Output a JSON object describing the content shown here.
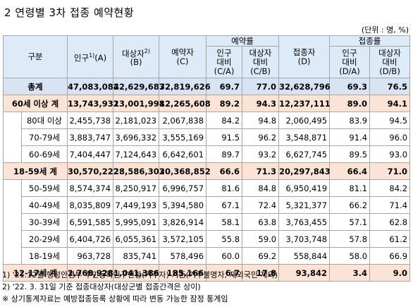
{
  "title": "2  연령별 3차 접종 예약현황",
  "unit": "(단위 : 명, %)",
  "headers": {
    "category": "구분",
    "population": "인구",
    "population_sup": "1)",
    "population_code": "(A)",
    "target": "대상자",
    "target_sup": "2)",
    "target_code": "(B)",
    "reserved": "예약자",
    "reserved_code": "(C)",
    "reservation_rate": "예약률",
    "rate_pop": "인구\n대비\n(C/A)",
    "rate_target": "대상자\n대비\n(C/B)",
    "vaccinated": "접종자",
    "vaccinated_code": "(D)",
    "vaccination_rate": "접종률",
    "vrate_pop": "인구\n대비\n(D/A)",
    "vrate_target": "대상자\n대비\n(D/B)"
  },
  "rows": [
    {
      "label": "총계",
      "population": "47,083,082",
      "target": "42,629,687",
      "reserved": "32,819,626",
      "rate_pop": "69.7",
      "rate_target": "77.0",
      "vaccinated": "32,628,796",
      "vrate_pop": "69.3",
      "vrate_target": "76.5"
    },
    {
      "label": "60세 이상 계",
      "population": "13,743,932",
      "target": "13,001,998",
      "reserved": "12,265,608",
      "rate_pop": "89.2",
      "rate_target": "94.3",
      "vaccinated": "12,237,111",
      "vrate_pop": "89.0",
      "vrate_target": "94.1"
    },
    {
      "label": "80대 이상",
      "population": "2,455,738",
      "target": "2,181,023",
      "reserved": "2,067,838",
      "rate_pop": "84.2",
      "rate_target": "94.8",
      "vaccinated": "2,060,495",
      "vrate_pop": "83.9",
      "vrate_target": "94.5"
    },
    {
      "label": "70-79세",
      "population": "3,883,747",
      "target": "3,696,332",
      "reserved": "3,555,169",
      "rate_pop": "91.5",
      "rate_target": "96.2",
      "vaccinated": "3,548,871",
      "vrate_pop": "91.4",
      "vrate_target": "96.0"
    },
    {
      "label": "60-69세",
      "population": "7,404,447",
      "target": "7,124,643",
      "reserved": "6,642,601",
      "rate_pop": "89.7",
      "rate_target": "93.2",
      "vaccinated": "6,627,745",
      "vrate_pop": "89.5",
      "vrate_target": "93.0"
    },
    {
      "label": "18-59세 계",
      "population": "30,570,222",
      "target": "28,586,303",
      "reserved": "20,368,852",
      "rate_pop": "66.6",
      "rate_target": "71.3",
      "vaccinated": "20,297,843",
      "vrate_pop": "66.4",
      "vrate_target": "71.0"
    },
    {
      "label": "50-59세",
      "population": "8,574,374",
      "target": "8,250,917",
      "reserved": "6,996,757",
      "rate_pop": "81.6",
      "rate_target": "84.8",
      "vaccinated": "6,950,419",
      "vrate_pop": "81.1",
      "vrate_target": "84.2"
    },
    {
      "label": "40-49세",
      "population": "8,035,809",
      "target": "7,449,193",
      "reserved": "5,394,580",
      "rate_pop": "67.1",
      "rate_target": "72.4",
      "vaccinated": "5,321,377",
      "vrate_pop": "66.2",
      "vrate_target": "71.4"
    },
    {
      "label": "30-39세",
      "population": "6,591,585",
      "target": "5,995,091",
      "reserved": "3,826,914",
      "rate_pop": "58.1",
      "rate_target": "63.8",
      "vaccinated": "3,763,455",
      "vrate_pop": "57.1",
      "vrate_target": "62.8"
    },
    {
      "label": "20-29세",
      "population": "6,404,726",
      "target": "6,055,361",
      "reserved": "3,572,105",
      "rate_pop": "55.8",
      "rate_target": "59.0",
      "vaccinated": "3,703,748",
      "vrate_pop": "57.8",
      "vrate_target": "61.2"
    },
    {
      "label": "18-19세",
      "population": "963,728",
      "target": "835,741",
      "reserved": "578,496",
      "rate_pop": "60.0",
      "rate_target": "69.2",
      "vaccinated": "558,844",
      "vrate_pop": "58.0",
      "vrate_target": "66.9"
    },
    {
      "label": "12-17세 계",
      "population": "2,768,928",
      "target": "1,041,386",
      "reserved": "185,166",
      "rate_pop": "6.7",
      "rate_target": "17.8",
      "vaccinated": "93,842",
      "vrate_pop": "3.4",
      "vrate_target": "9.0"
    }
  ],
  "footnotes": [
    "1) '21.12월 행정안전부 주민등록인구현황(거주자) 기준(거주불명자, 재외국민 제외)",
    "2) '22. 3. 31일 기준 접종대상자(대상군별 접종간격은 상이)",
    "※ 상기통계자료는 예방접종등록 상황에 따라 변동 가능한 잠정 통계임"
  ]
}
